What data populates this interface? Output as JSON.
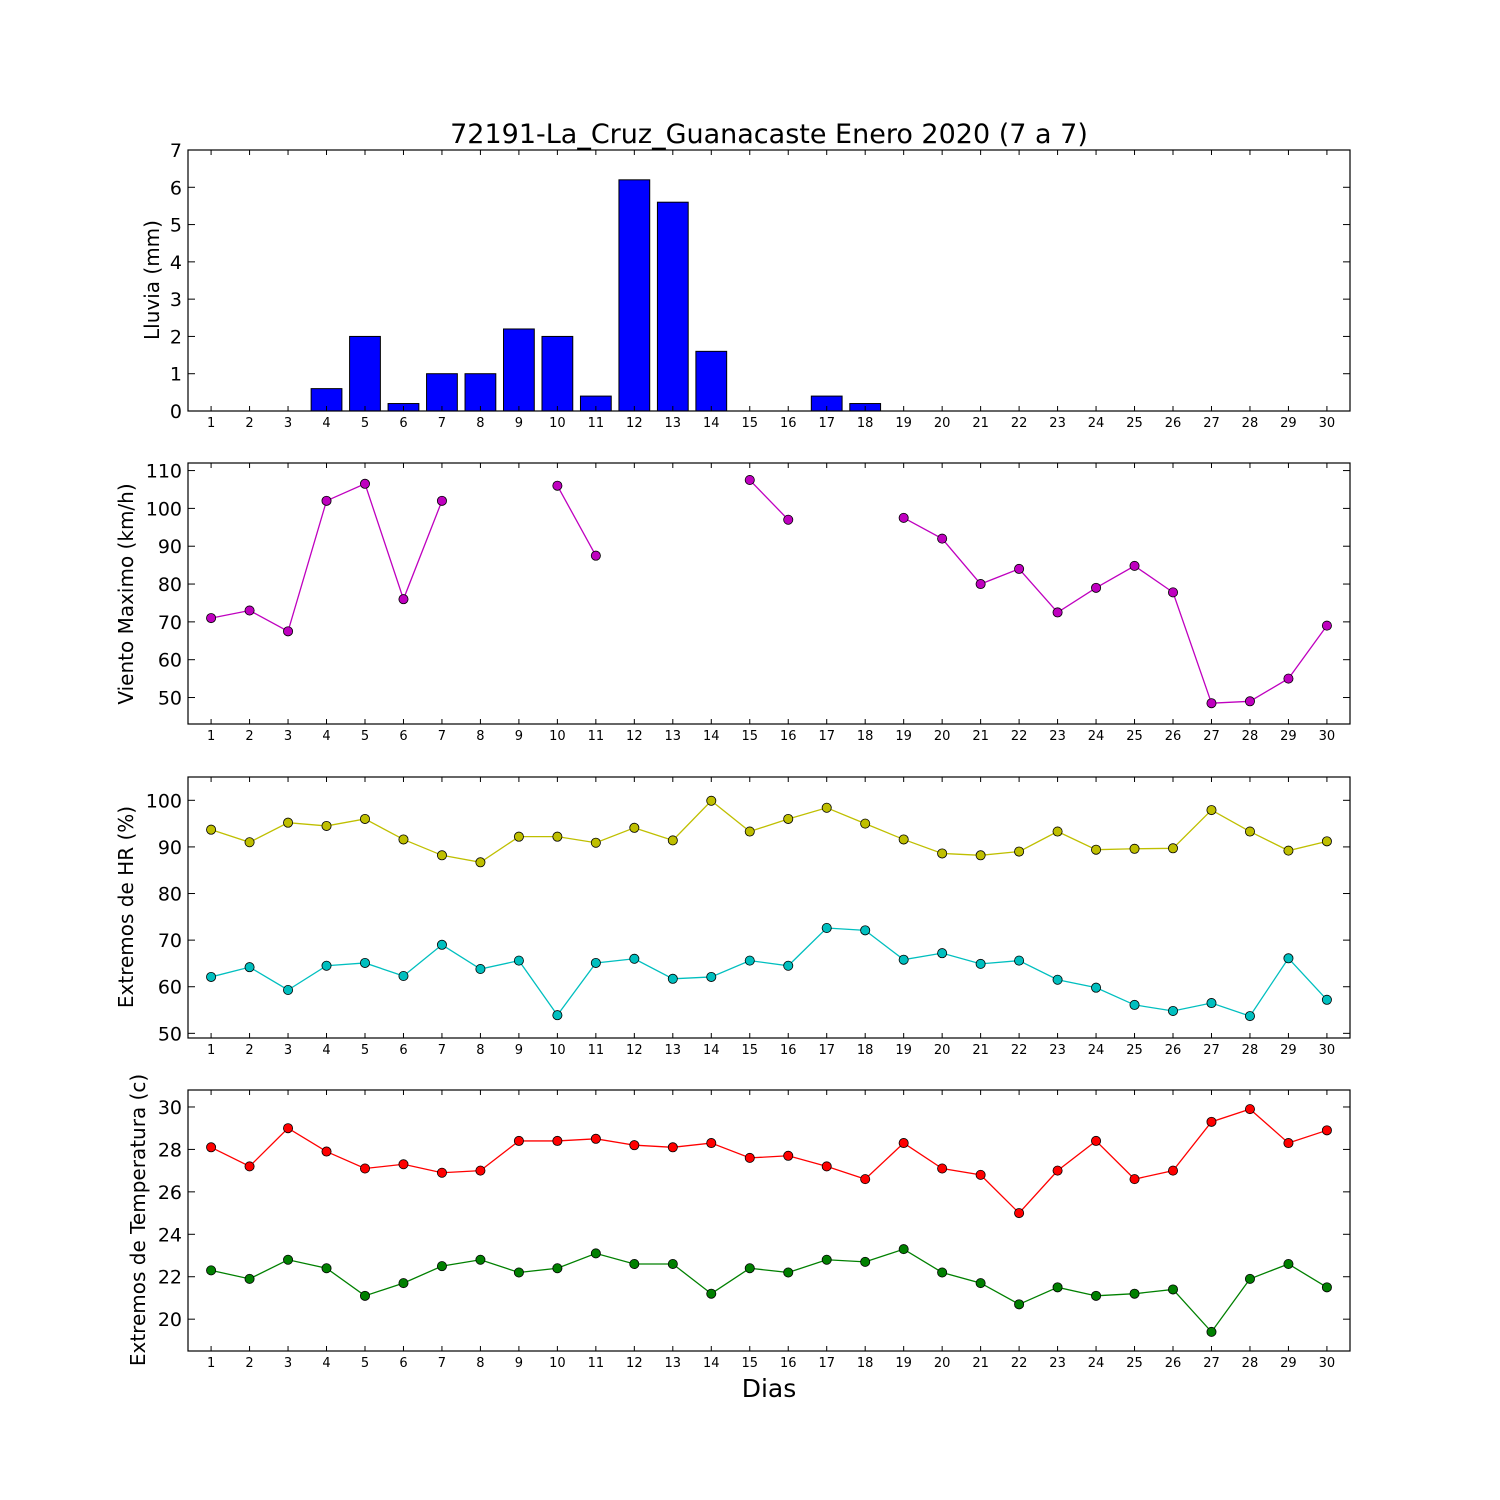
{
  "chart_data": [
    {
      "type": "bar",
      "title": "72191-La_Cruz_Guanacaste Enero 2020  (7 a 7)",
      "ylabel": "Lluvia (mm)",
      "xlabel": "",
      "ylim": [
        0,
        7
      ],
      "yticks": [
        0,
        1,
        2,
        3,
        4,
        5,
        6,
        7
      ],
      "x": [
        1,
        2,
        3,
        4,
        5,
        6,
        7,
        8,
        9,
        10,
        11,
        12,
        13,
        14,
        15,
        16,
        17,
        18,
        19,
        20,
        21,
        22,
        23,
        24,
        25,
        26,
        27,
        28,
        29,
        30
      ],
      "series": [
        {
          "values": [
            0,
            0,
            0,
            0.6,
            2.0,
            0.2,
            1.0,
            1.0,
            2.2,
            2.0,
            0.4,
            6.2,
            5.6,
            1.6,
            0,
            0,
            0.4,
            0.2,
            0,
            0,
            0,
            0,
            0,
            0,
            0,
            0,
            0,
            0,
            0,
            0
          ],
          "color": "#0000ff"
        }
      ],
      "grid": false
    },
    {
      "type": "line",
      "title": "",
      "ylabel": "Viento Maximo (km/h)",
      "xlabel": "",
      "ylim": [
        43,
        112
      ],
      "yticks": [
        50,
        60,
        70,
        80,
        90,
        100,
        110
      ],
      "x": [
        1,
        2,
        3,
        4,
        5,
        6,
        7,
        8,
        9,
        10,
        11,
        12,
        13,
        14,
        15,
        16,
        17,
        18,
        19,
        20,
        21,
        22,
        23,
        24,
        25,
        26,
        27,
        28,
        29,
        30
      ],
      "series": [
        {
          "values": [
            71,
            73,
            67.5,
            102,
            106.5,
            76,
            102,
            null,
            null,
            106,
            87.5,
            null,
            null,
            null,
            107.5,
            97,
            null,
            null,
            97.5,
            92,
            80,
            84,
            72.5,
            79,
            84.8,
            77.8,
            48.5,
            49,
            55,
            69
          ],
          "color": "#bf00bf"
        }
      ],
      "grid": false
    },
    {
      "type": "line",
      "title": "",
      "ylabel": "Extremos de HR (%)",
      "xlabel": "",
      "ylim": [
        49,
        105
      ],
      "yticks": [
        50,
        60,
        70,
        80,
        90,
        100
      ],
      "x": [
        1,
        2,
        3,
        4,
        5,
        6,
        7,
        8,
        9,
        10,
        11,
        12,
        13,
        14,
        15,
        16,
        17,
        18,
        19,
        20,
        21,
        22,
        23,
        24,
        25,
        26,
        27,
        28,
        29,
        30
      ],
      "series": [
        {
          "values": [
            93.7,
            91,
            95.2,
            94.5,
            96,
            91.6,
            88.2,
            86.7,
            92.2,
            92.2,
            90.9,
            94.1,
            91.4,
            99.9,
            93.3,
            96,
            98.4,
            95,
            91.6,
            88.6,
            88.2,
            89,
            93.3,
            89.4,
            89.6,
            89.7,
            97.9,
            93.3,
            89.2,
            91.2
          ],
          "color": "#bfbf00"
        },
        {
          "values": [
            62.1,
            64.2,
            59.3,
            64.5,
            65.1,
            62.3,
            69,
            63.8,
            65.6,
            53.9,
            65.1,
            66,
            61.7,
            62.1,
            65.6,
            64.5,
            72.6,
            72.1,
            65.8,
            67.2,
            64.9,
            65.6,
            61.5,
            59.8,
            56.1,
            54.8,
            56.5,
            53.7,
            66.1,
            57.2
          ],
          "color": "#00bfbf"
        }
      ],
      "grid": false
    },
    {
      "type": "line",
      "title": "",
      "ylabel": "Extremos de Temperatura (c)",
      "xlabel": "Dias",
      "ylim": [
        18.5,
        30.8
      ],
      "yticks": [
        20,
        22,
        24,
        26,
        28,
        30
      ],
      "x": [
        1,
        2,
        3,
        4,
        5,
        6,
        7,
        8,
        9,
        10,
        11,
        12,
        13,
        14,
        15,
        16,
        17,
        18,
        19,
        20,
        21,
        22,
        23,
        24,
        25,
        26,
        27,
        28,
        29,
        30
      ],
      "series": [
        {
          "values": [
            28.1,
            27.2,
            29,
            27.9,
            27.1,
            27.3,
            26.9,
            27,
            28.4,
            28.4,
            28.5,
            28.2,
            28.1,
            28.3,
            27.6,
            27.7,
            27.2,
            26.6,
            28.3,
            27.1,
            26.8,
            25,
            27,
            28.4,
            26.6,
            27,
            29.3,
            29.9,
            28.3,
            28.9
          ],
          "color": "#ff0000"
        },
        {
          "values": [
            22.3,
            21.9,
            22.8,
            22.4,
            21.1,
            21.7,
            22.5,
            22.8,
            22.2,
            22.4,
            23.1,
            22.6,
            22.6,
            21.2,
            22.4,
            22.2,
            22.8,
            22.7,
            23.3,
            22.2,
            21.7,
            20.7,
            21.5,
            21.1,
            21.2,
            21.4,
            19.4,
            21.9,
            22.6,
            21.5
          ],
          "color": "#008000"
        }
      ],
      "grid": false
    }
  ]
}
